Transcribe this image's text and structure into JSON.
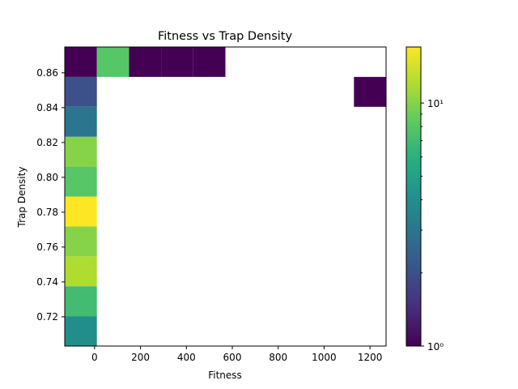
{
  "chart_data": {
    "type": "heatmap",
    "title": "Fitness vs Trap Density",
    "xlabel": "Fitness",
    "ylabel": "Trap Density",
    "xlim": [
      -130,
      1270
    ],
    "ylim": [
      0.7032,
      0.8748
    ],
    "x_ticks": [
      0,
      200,
      400,
      600,
      800,
      1000,
      1200
    ],
    "y_ticks": [
      0.72,
      0.74,
      0.76,
      0.78,
      0.8,
      0.82,
      0.84,
      0.86
    ],
    "x_bin_width": 140,
    "y_bin_height": 0.01716,
    "colorscale": "viridis",
    "color_scale_type": "log",
    "color_range": [
      1,
      17
    ],
    "colorbar_ticks": [
      {
        "value": 1,
        "label": "10⁰",
        "major": true
      },
      {
        "value": 2,
        "major": false
      },
      {
        "value": 3,
        "major": false
      },
      {
        "value": 4,
        "major": false
      },
      {
        "value": 5,
        "major": false
      },
      {
        "value": 6,
        "major": false
      },
      {
        "value": 7,
        "major": false
      },
      {
        "value": 8,
        "major": false
      },
      {
        "value": 9,
        "major": false
      },
      {
        "value": 10,
        "label": "10¹",
        "major": true
      }
    ],
    "cells": [
      {
        "x0": -130,
        "y0": 0.7032,
        "count": 4
      },
      {
        "x0": -130,
        "y0": 0.72036,
        "count": 7
      },
      {
        "x0": -130,
        "y0": 0.73752,
        "count": 12
      },
      {
        "x0": -130,
        "y0": 0.75468,
        "count": 10
      },
      {
        "x0": -130,
        "y0": 0.77184,
        "count": 17
      },
      {
        "x0": -130,
        "y0": 0.789,
        "count": 8
      },
      {
        "x0": -130,
        "y0": 0.80616,
        "count": 10
      },
      {
        "x0": -130,
        "y0": 0.82332,
        "count": 3
      },
      {
        "x0": -130,
        "y0": 0.84048,
        "count": 2
      },
      {
        "x0": -130,
        "y0": 0.85764,
        "count": 1
      },
      {
        "x0": 10,
        "y0": 0.85764,
        "count": 8
      },
      {
        "x0": 150,
        "y0": 0.85764,
        "count": 1
      },
      {
        "x0": 290,
        "y0": 0.85764,
        "count": 1
      },
      {
        "x0": 430,
        "y0": 0.85764,
        "count": 1
      },
      {
        "x0": 1130,
        "y0": 0.84048,
        "count": 1
      }
    ]
  }
}
